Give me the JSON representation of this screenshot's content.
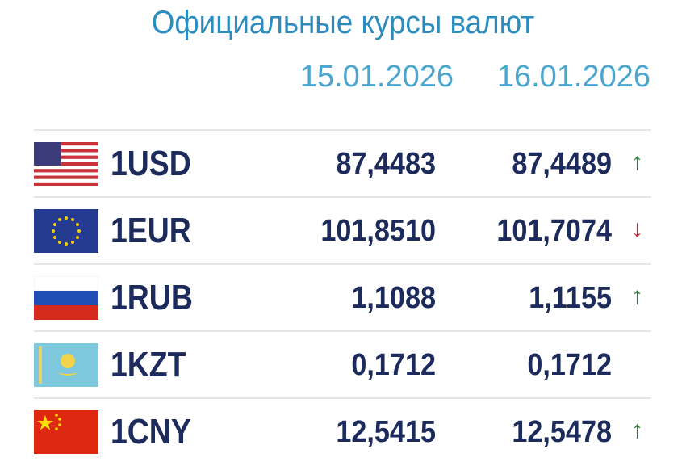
{
  "header": {
    "title": "Официальные курсы валют",
    "dates": [
      "15.01.2026",
      "16.01.2026"
    ]
  },
  "table": {
    "rows": [
      {
        "currency": "1USD",
        "values": [
          "87,4483",
          "87,4489"
        ],
        "trend": "↑"
      },
      {
        "currency": "1EUR",
        "values": [
          "101,8510",
          "101,7074"
        ],
        "trend": "↓"
      },
      {
        "currency": "1RUB",
        "values": [
          "1,1088",
          "1,1155"
        ],
        "trend": "↑"
      },
      {
        "currency": "1KZT",
        "values": [
          "0,1712",
          "0,1712"
        ]
      },
      {
        "currency": "1CNY",
        "values": [
          "12,5415",
          "12,5478"
        ],
        "trend": "↑"
      }
    ]
  }
}
